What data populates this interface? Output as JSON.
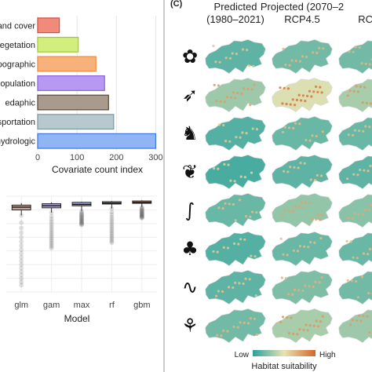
{
  "chart_data": [
    {
      "type": "bar",
      "orientation": "horizontal",
      "categories": [
        "and cover",
        "vegetation",
        "opographic",
        "population",
        "edaphic",
        "nsportation",
        "hydrologic"
      ],
      "values": [
        55,
        103,
        148,
        170,
        180,
        193,
        300
      ],
      "colors": [
        "#f08a7a",
        "#d2ee7d",
        "#f6b27a",
        "#b69af2",
        "#a99a8e",
        "#b7c8ce",
        "#8fb6f2"
      ],
      "edge_colors": [
        "#d94a38",
        "#9ccc2a",
        "#ef8a3a",
        "#8b63e6",
        "#5b4838",
        "#7d97a2",
        "#3d77e0"
      ],
      "xlabel": "Covariate count index",
      "xticks": [
        0,
        100,
        200,
        300
      ],
      "xlim": [
        0,
        315
      ],
      "grid": true
    },
    {
      "type": "box",
      "categories": [
        "glm",
        "gam",
        "max",
        "rf",
        "gbm"
      ],
      "medians": [
        0.92,
        0.93,
        0.94,
        0.95,
        0.955
      ],
      "q1": [
        0.9,
        0.915,
        0.93,
        0.945,
        0.95
      ],
      "q3": [
        0.935,
        0.945,
        0.955,
        0.96,
        0.965
      ],
      "whisker_low": [
        0.86,
        0.88,
        0.89,
        0.91,
        0.92
      ],
      "whisker_high": [
        0.95,
        0.955,
        0.96,
        0.965,
        0.97
      ],
      "outlier_min": [
        0.35,
        0.62,
        0.79,
        0.66,
        0.84
      ],
      "colors": [
        "#c9a99f",
        "#b9a6ef",
        "#9db4ea",
        "#a5c99a",
        "#ea9a8c"
      ],
      "xlabel": "Model",
      "ylim": [
        0.3,
        1.0
      ],
      "grid": true
    },
    {
      "type": "heatmap-map-grid",
      "panel_label": "(C)",
      "columns": [
        {
          "title": "Predicted",
          "subtitle": "(1980–2021)"
        },
        {
          "title": "Projected (2070–2",
          "subtitle": "RCP4.5"
        },
        {
          "title": "",
          "subtitle": "RCP"
        }
      ],
      "rows": [
        "flower",
        "bird",
        "ibex",
        "fern",
        "lizard",
        "conifer",
        "salamander",
        "grass"
      ],
      "intensity": [
        [
          0.25,
          0.35,
          0.35
        ],
        [
          0.55,
          0.85,
          0.6
        ],
        [
          0.2,
          0.3,
          0.3
        ],
        [
          0.15,
          0.25,
          0.25
        ],
        [
          0.3,
          0.5,
          0.45
        ],
        [
          0.2,
          0.3,
          0.3
        ],
        [
          0.25,
          0.4,
          0.35
        ],
        [
          0.35,
          0.6,
          0.55
        ]
      ],
      "legend_title": "Habitat suitability",
      "legend_low": "Low",
      "legend_high": "High",
      "colors": {
        "low": "#2aa19e",
        "mid": "#e8e3b2",
        "high": "#d4662a"
      }
    }
  ]
}
